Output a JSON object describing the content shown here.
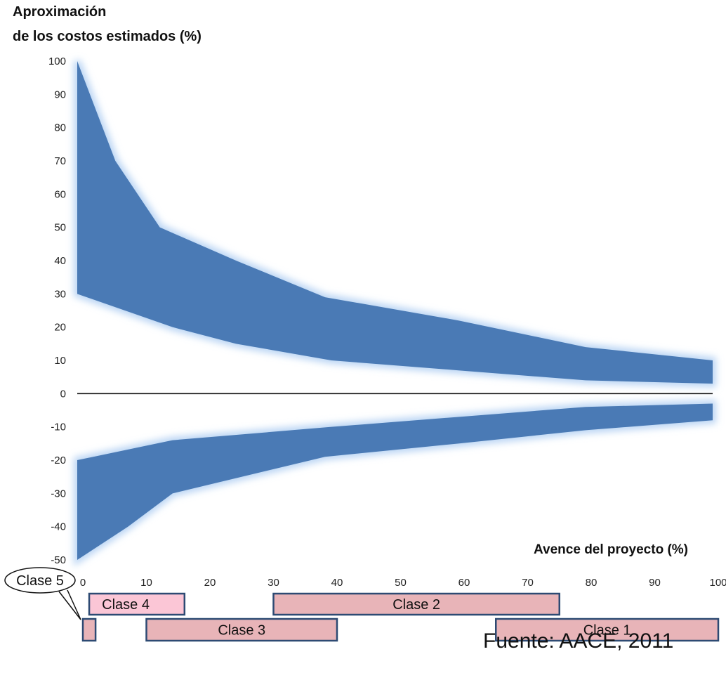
{
  "chart_data": {
    "type": "area",
    "ylabel_lines": [
      "Aproximación",
      "de los costos estimados (%)"
    ],
    "xlabel": "Avence del proyecto (%)",
    "xlim": [
      0,
      100
    ],
    "ylim": [
      -50,
      100
    ],
    "x_ticks": [
      0,
      10,
      20,
      30,
      40,
      50,
      60,
      70,
      80,
      90,
      100
    ],
    "y_ticks": [
      100,
      90,
      80,
      70,
      60,
      50,
      40,
      30,
      20,
      10,
      0,
      -10,
      -20,
      -30,
      -40,
      -50
    ],
    "colors": {
      "band": "#4a7ab5",
      "glow": "#bcd6f4",
      "phase_fill": "#e8b4b8",
      "phase_border": "#2d4a73",
      "clase4_fill": "#fbc6d6"
    },
    "bands": [
      {
        "upper": [
          [
            0,
            100
          ],
          [
            6,
            70
          ],
          [
            13,
            50
          ],
          [
            25,
            40
          ],
          [
            39,
            29
          ],
          [
            60,
            22
          ],
          [
            80,
            14
          ],
          [
            100,
            10
          ]
        ],
        "lower": [
          [
            0,
            30
          ],
          [
            15,
            20
          ],
          [
            25,
            15
          ],
          [
            40,
            10
          ],
          [
            60,
            7
          ],
          [
            80,
            4
          ],
          [
            100,
            3
          ]
        ]
      },
      {
        "upper": [
          [
            0,
            -20
          ],
          [
            15,
            -14
          ],
          [
            40,
            -10
          ],
          [
            60,
            -7
          ],
          [
            80,
            -4
          ],
          [
            100,
            -3
          ]
        ],
        "lower": [
          [
            0,
            -50
          ],
          [
            8,
            -40
          ],
          [
            15,
            -30
          ],
          [
            39,
            -19
          ],
          [
            60,
            -15
          ],
          [
            80,
            -11
          ],
          [
            100,
            -8
          ]
        ]
      }
    ],
    "phases": [
      {
        "label": "Clase 5",
        "start": 0,
        "end": 2,
        "row": 2,
        "callout": true
      },
      {
        "label": "Clase 4",
        "start": 1,
        "end": 16,
        "row": 1
      },
      {
        "label": "Clase 3",
        "start": 10,
        "end": 40,
        "row": 2
      },
      {
        "label": "Clase 2",
        "start": 30,
        "end": 75,
        "row": 1
      },
      {
        "label": "Clase 1",
        "start": 65,
        "end": 100,
        "row": 2
      }
    ]
  },
  "source": "Fuente: AACE, 2011"
}
